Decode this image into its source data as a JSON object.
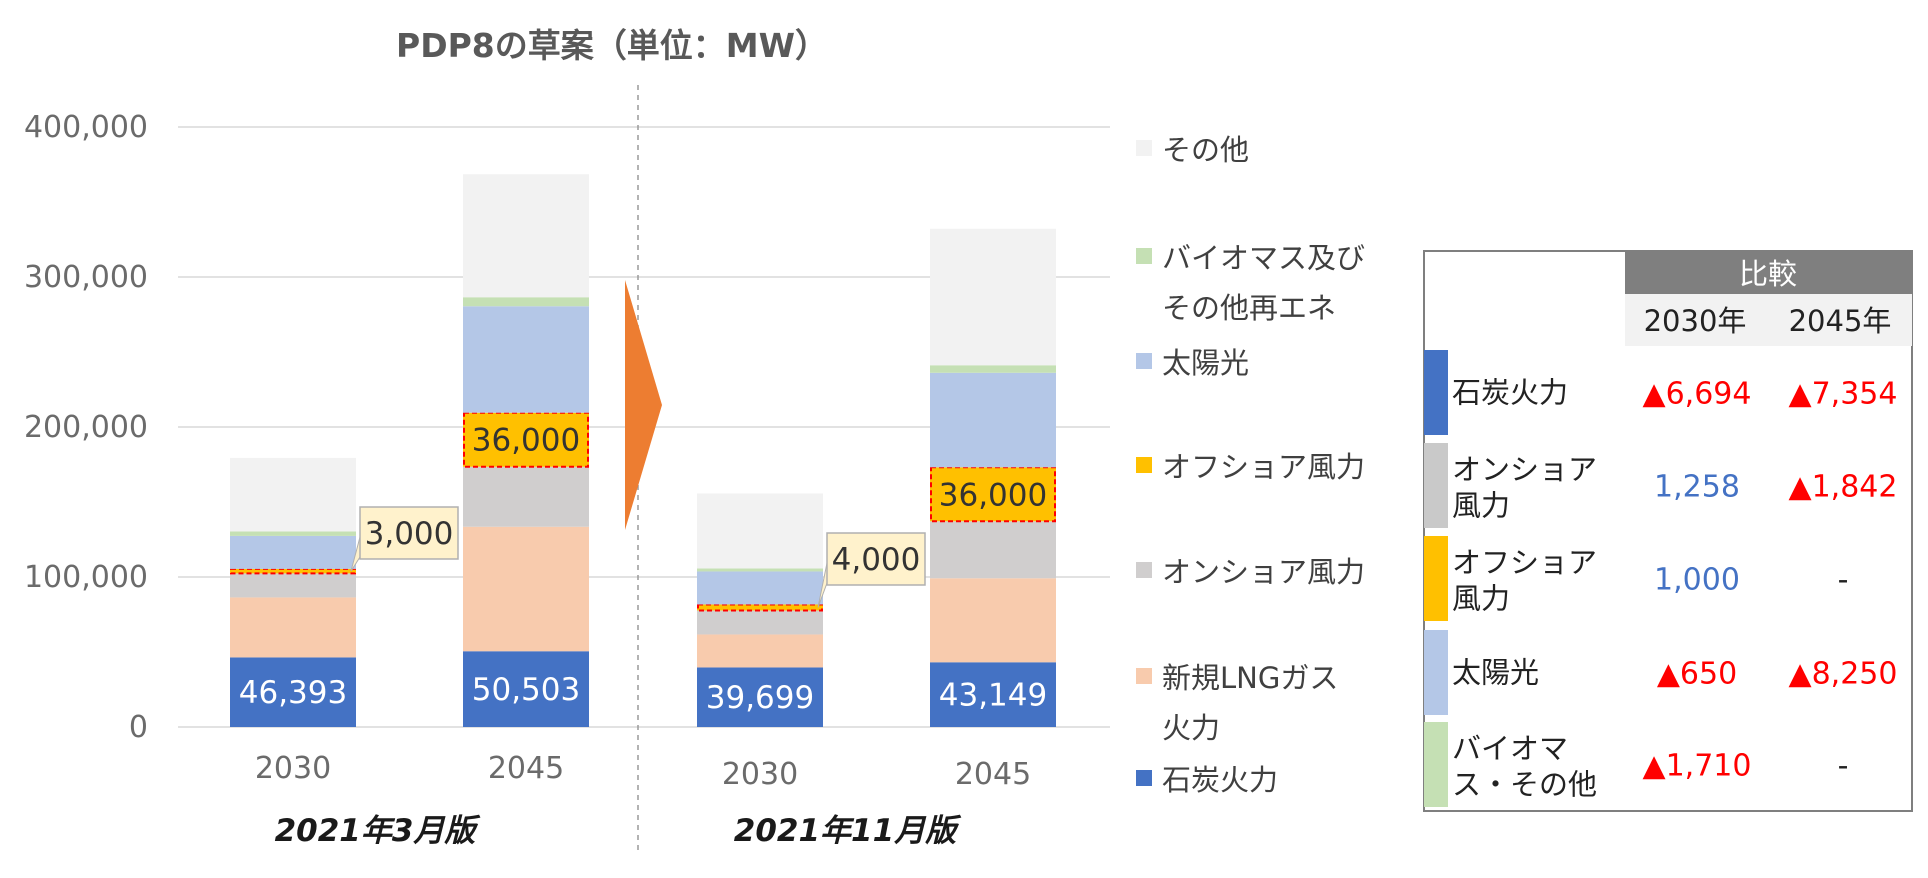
{
  "chart_data": {
    "type": "bar",
    "stacked": true,
    "title": "PDP8の草案（単位：MW）",
    "ylim": [
      0,
      400000
    ],
    "yticks": [
      "0",
      "100,000",
      "200,000",
      "300,000",
      "400,000"
    ],
    "categories": [
      "2030",
      "2045",
      "2030",
      "2045"
    ],
    "groups": [
      {
        "label": "2021年3月版",
        "categories": [
          0,
          1
        ]
      },
      {
        "label": "2021年11月版",
        "categories": [
          2,
          3
        ]
      }
    ],
    "series": [
      {
        "name": "石炭火力",
        "color": "#4472C4",
        "values": [
          46393,
          50503,
          39699,
          43149
        ],
        "labels": [
          "46,393",
          "50,503",
          "39,699",
          "43,149"
        ]
      },
      {
        "name": "新規LNGガス火力",
        "color": "#F8CBAD",
        "values": [
          40000,
          83000,
          22000,
          56000
        ]
      },
      {
        "name": "オンショア風力",
        "color": "#D0CECE",
        "values": [
          16000,
          40000,
          16000,
          38000
        ]
      },
      {
        "name": "オフショア風力",
        "color": "#FFC000",
        "values": [
          3000,
          36000,
          4000,
          36000
        ],
        "labels": [
          "3,000",
          "36,000",
          "4,000",
          "36,000"
        ]
      },
      {
        "name": "太陽光",
        "color": "#B4C7E7",
        "values": [
          22000,
          71000,
          22000,
          63000
        ]
      },
      {
        "name": "バイオマス及びその他再エネ",
        "color": "#C5E0B4",
        "values": [
          3000,
          6000,
          2000,
          5000
        ]
      },
      {
        "name": "その他",
        "color": "#F2F2F2",
        "values": [
          49000,
          82000,
          50000,
          91000
        ]
      }
    ],
    "legend_labels": {
      "other": "その他",
      "biomass_line1": "バイオマス及び",
      "biomass_line2": "その他再エネ",
      "solar": "太陽光",
      "offshore": "オフショア風力",
      "onshore": "オンショア風力",
      "lng_line1": "新規LNGガス",
      "lng_line2": "火力",
      "coal": "石炭火力"
    },
    "legend_position": "right",
    "grid": true
  },
  "comparison_table": {
    "header": "比較",
    "columns": [
      "2030年",
      "2045年"
    ],
    "rows": [
      {
        "label_lines": [
          "石炭火力"
        ],
        "color": "#4472C4",
        "values": [
          "▲6,694",
          "▲7,354"
        ],
        "value_colors": [
          "#FF0000",
          "#FF0000"
        ]
      },
      {
        "label_lines": [
          "オンショア",
          "風力"
        ],
        "color": "#C9C9C9",
        "values": [
          "1,258",
          "▲1,842"
        ],
        "value_colors": [
          "#4472C4",
          "#FF0000"
        ]
      },
      {
        "label_lines": [
          "オフショア",
          "風力"
        ],
        "color": "#FFC000",
        "values": [
          "1,000",
          "-"
        ],
        "value_colors": [
          "#4472C4",
          "#222222"
        ]
      },
      {
        "label_lines": [
          "太陽光"
        ],
        "color": "#B4C7E7",
        "values": [
          "▲650",
          "▲8,250"
        ],
        "value_colors": [
          "#FF0000",
          "#FF0000"
        ]
      },
      {
        "label_lines": [
          "バイオマ",
          "ス・その他"
        ],
        "color": "#C5E0B4",
        "values": [
          "▲1,710",
          "-"
        ],
        "value_colors": [
          "#FF0000",
          "#222222"
        ]
      }
    ]
  },
  "colors": {
    "arrow": "#ED7D31",
    "table_header_bg": "#7F7F7F",
    "table_subheader_bg": "#F2F2F2",
    "callout_bg": "#FFF2CC",
    "highlight_border": "#FF0000"
  }
}
